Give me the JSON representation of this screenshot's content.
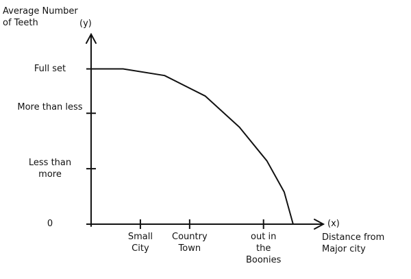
{
  "chart_data": {
    "type": "line",
    "ylabel": "Average Number of Teeth",
    "y_symbol": "(y)",
    "xlabel": "Distance from Major city",
    "x_symbol": "(x)",
    "xlim": [
      0,
      4.7
    ],
    "ylim": [
      0,
      3.4
    ],
    "xticks": [
      {
        "value": 1,
        "label": "Small City"
      },
      {
        "value": 2,
        "label": "Country Town"
      },
      {
        "value": 3.5,
        "label": "out in the Boonies"
      }
    ],
    "yticks": [
      0,
      {
        "value": 1,
        "label": "Less than more"
      },
      {
        "value": 2,
        "label": "More than less"
      },
      {
        "value": 2.8,
        "label": "Full set"
      }
    ],
    "series": [
      {
        "color": "#111111",
        "x": [
          0,
          0.65,
          1.49,
          2.32,
          3.01,
          3.57,
          3.92,
          4.1
        ],
        "values": [
          2.8,
          2.8,
          2.68,
          2.31,
          1.75,
          1.14,
          0.58,
          0
        ]
      }
    ]
  }
}
